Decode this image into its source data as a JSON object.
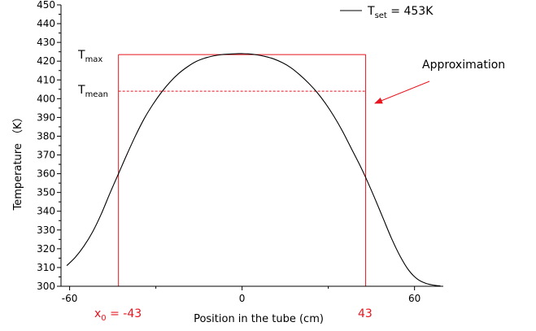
{
  "chart_data": {
    "type": "line",
    "xlabel": "Position in the tube (cm)",
    "ylabel": "Temperature （K）",
    "xlim": [
      -63,
      70
    ],
    "ylim": [
      300,
      450
    ],
    "x_ticks": [
      -60,
      0,
      60
    ],
    "y_ticks": [
      300,
      310,
      320,
      330,
      340,
      350,
      360,
      370,
      380,
      390,
      400,
      410,
      420,
      430,
      440,
      450
    ],
    "grid": false,
    "legend": {
      "placement": "top-right",
      "entries": [
        {
          "prefix": "T",
          "subscript": "set",
          "suffix": " = 453K",
          "color": "#000000"
        }
      ]
    },
    "series": [
      {
        "name": "T_set = 453K",
        "color": "#000000",
        "x": [
          -61,
          -58,
          -55,
          -52,
          -49,
          -46,
          -43,
          -40,
          -37,
          -34,
          -31,
          -28,
          -25,
          -22,
          -19,
          -16,
          -13,
          -10,
          -7,
          -4,
          -1,
          0,
          2,
          5,
          8,
          11,
          14,
          17,
          20,
          23,
          26,
          29,
          32,
          35,
          38,
          41,
          43,
          46,
          49,
          52,
          55,
          58,
          61,
          64,
          67,
          69
        ],
        "y": [
          311,
          315.5,
          321.5,
          329,
          338.5,
          349.5,
          360,
          370.5,
          380.5,
          389.5,
          397,
          403.5,
          409,
          413.5,
          417,
          419.8,
          421.6,
          422.8,
          423.5,
          423.8,
          424,
          424,
          423.9,
          423.4,
          422.5,
          421.2,
          419.2,
          416.5,
          412.8,
          408.5,
          403.5,
          397.5,
          390.5,
          382.5,
          373.5,
          364.5,
          358,
          347.5,
          336.5,
          325.5,
          316,
          308.5,
          303.8,
          301.5,
          300.5,
          300.2
        ]
      }
    ],
    "guides": {
      "color": "#e8141e",
      "x0": -43,
      "x1": 43,
      "t_max": 423.5,
      "t_mean": 404
    },
    "annotations": {
      "tmax": {
        "prefix": "T",
        "subscript": "max"
      },
      "tmean": {
        "prefix": "T",
        "subscript": "mean"
      },
      "approximation": "Approximation",
      "x0": {
        "prefix": "x",
        "subscript": "0",
        "suffix": " = -43"
      },
      "x1": "43"
    }
  }
}
